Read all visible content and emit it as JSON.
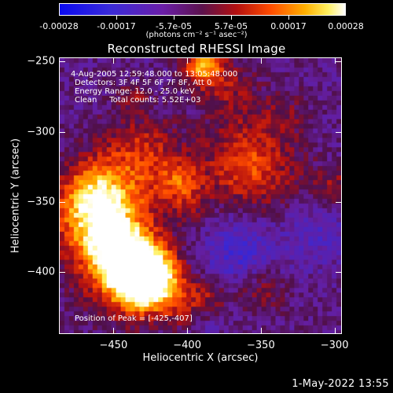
{
  "colorbar": {
    "ticks": [
      "-0.00028",
      "-0.00017",
      "-5.7e-05",
      "5.7e-05",
      "0.00017",
      "0.00028"
    ],
    "units": "(photons cm⁻² s⁻¹ asec⁻²)",
    "range": [
      -0.00028,
      0.00028
    ]
  },
  "title": "Reconstructed RHESSI Image",
  "annotations": {
    "time_range": "4-Aug-2005 12:59:48.000 to 13:05:48.000",
    "detectors": "Detectors: 3F 4F 5F 6F 7F 8F, Att 0",
    "energy_range": "Energy Range: 12.0 - 25.0 keV",
    "method": "Clean     Total counts: 5.52E+03",
    "peak": "Position of Peak = [-425,-407]"
  },
  "chart_data": {
    "type": "heatmap",
    "xlabel": "Heliocentric X (arcsec)",
    "ylabel": "Heliocentric Y (arcsec)",
    "xlim": [
      -487,
      -295
    ],
    "ylim": [
      -444,
      -247
    ],
    "xticks": [
      -450,
      -400,
      -350,
      -300
    ],
    "yticks": [
      -250,
      -300,
      -350,
      -400
    ],
    "peak": [
      -425,
      -407
    ],
    "color_scale": "blue-purple-red-orange-yellow-white"
  },
  "footer": {
    "date": "1-May-2022 13:55"
  }
}
